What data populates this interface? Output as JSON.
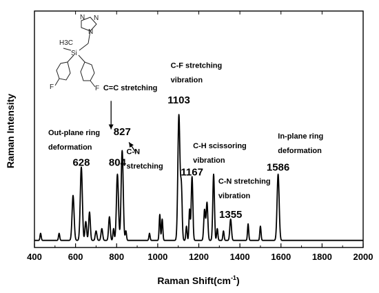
{
  "chart_data": {
    "type": "line",
    "title": "",
    "xlabel": "Raman Shift(cm",
    "xlabel_sup": "-1",
    "xlabel_close": ")",
    "ylabel": "Raman Intensity",
    "xlim": [
      400,
      2000
    ],
    "ylim": [
      0,
      1
    ],
    "x_ticks": [
      "400",
      "600",
      "800",
      "1000",
      "1200",
      "1400",
      "1600",
      "1800",
      "2000"
    ],
    "y_ticks_labeled": false,
    "grid": false,
    "series_color": "#000000",
    "baseline": 0.03,
    "peaks": [
      {
        "x": 430,
        "h": 0.03,
        "w": 3
      },
      {
        "x": 520,
        "h": 0.03,
        "w": 3
      },
      {
        "x": 588,
        "h": 0.19,
        "w": 5
      },
      {
        "x": 628,
        "h": 0.31,
        "w": 5
      },
      {
        "x": 650,
        "h": 0.08,
        "w": 4
      },
      {
        "x": 668,
        "h": 0.12,
        "w": 4
      },
      {
        "x": 700,
        "h": 0.04,
        "w": 4
      },
      {
        "x": 728,
        "h": 0.05,
        "w": 4
      },
      {
        "x": 765,
        "h": 0.1,
        "w": 4
      },
      {
        "x": 785,
        "h": 0.05,
        "w": 3
      },
      {
        "x": 804,
        "h": 0.28,
        "w": 5
      },
      {
        "x": 827,
        "h": 0.38,
        "w": 5
      },
      {
        "x": 845,
        "h": 0.04,
        "w": 3
      },
      {
        "x": 960,
        "h": 0.03,
        "w": 3
      },
      {
        "x": 1010,
        "h": 0.11,
        "w": 3
      },
      {
        "x": 1022,
        "h": 0.09,
        "w": 3
      },
      {
        "x": 1103,
        "h": 0.53,
        "w": 5
      },
      {
        "x": 1115,
        "h": 0.22,
        "w": 4
      },
      {
        "x": 1140,
        "h": 0.06,
        "w": 3
      },
      {
        "x": 1155,
        "h": 0.13,
        "w": 3
      },
      {
        "x": 1167,
        "h": 0.27,
        "w": 4
      },
      {
        "x": 1228,
        "h": 0.13,
        "w": 4
      },
      {
        "x": 1240,
        "h": 0.16,
        "w": 4
      },
      {
        "x": 1272,
        "h": 0.28,
        "w": 4
      },
      {
        "x": 1290,
        "h": 0.05,
        "w": 3
      },
      {
        "x": 1320,
        "h": 0.04,
        "w": 3
      },
      {
        "x": 1355,
        "h": 0.09,
        "w": 4
      },
      {
        "x": 1440,
        "h": 0.07,
        "w": 3
      },
      {
        "x": 1500,
        "h": 0.06,
        "w": 3
      },
      {
        "x": 1586,
        "h": 0.28,
        "w": 5
      }
    ],
    "peak_labels": [
      {
        "text": "628",
        "x": 628,
        "y": 0.345
      },
      {
        "text": "804",
        "x": 804,
        "y": 0.345
      },
      {
        "text": "827",
        "x": 827,
        "y": 0.475
      },
      {
        "text": "1103",
        "x": 1103,
        "y": 0.61
      },
      {
        "text": "1167",
        "x": 1167,
        "y": 0.305
      },
      {
        "text": "1355",
        "x": 1355,
        "y": 0.125
      },
      {
        "text": "1586",
        "x": 1586,
        "y": 0.325
      }
    ],
    "annotations": [
      {
        "lines": [
          "Out-plane ring",
          "deformation"
        ],
        "x": 467,
        "y": 0.475
      },
      {
        "lines": [
          "C=C stretching"
        ],
        "x": 735,
        "y": 0.665
      },
      {
        "lines": [
          "C-N",
          "stretching"
        ],
        "x": 848,
        "y": 0.395
      },
      {
        "lines": [
          "C-F stretching",
          "vibration"
        ],
        "x": 1063,
        "y": 0.76
      },
      {
        "lines": [
          "C-H scissoring",
          "vibration"
        ],
        "x": 1172,
        "y": 0.42
      },
      {
        "lines": [
          "C-N stretching",
          "vibration"
        ],
        "x": 1295,
        "y": 0.27
      },
      {
        "lines": [
          "In-plane ring",
          "deformation"
        ],
        "x": 1585,
        "y": 0.46
      }
    ],
    "arrows": [
      {
        "name": "arrow-c-c-stretching",
        "from": [
          773,
          0.62
        ],
        "to": [
          773,
          0.5
        ]
      },
      {
        "name": "arrow-c-n-stretching",
        "from": [
          895,
          0.4
        ],
        "to": [
          860,
          0.445
        ]
      }
    ]
  },
  "molecule": {
    "atoms": [
      "N",
      "N",
      "N",
      "H3C",
      "Si",
      "F",
      "F"
    ]
  }
}
